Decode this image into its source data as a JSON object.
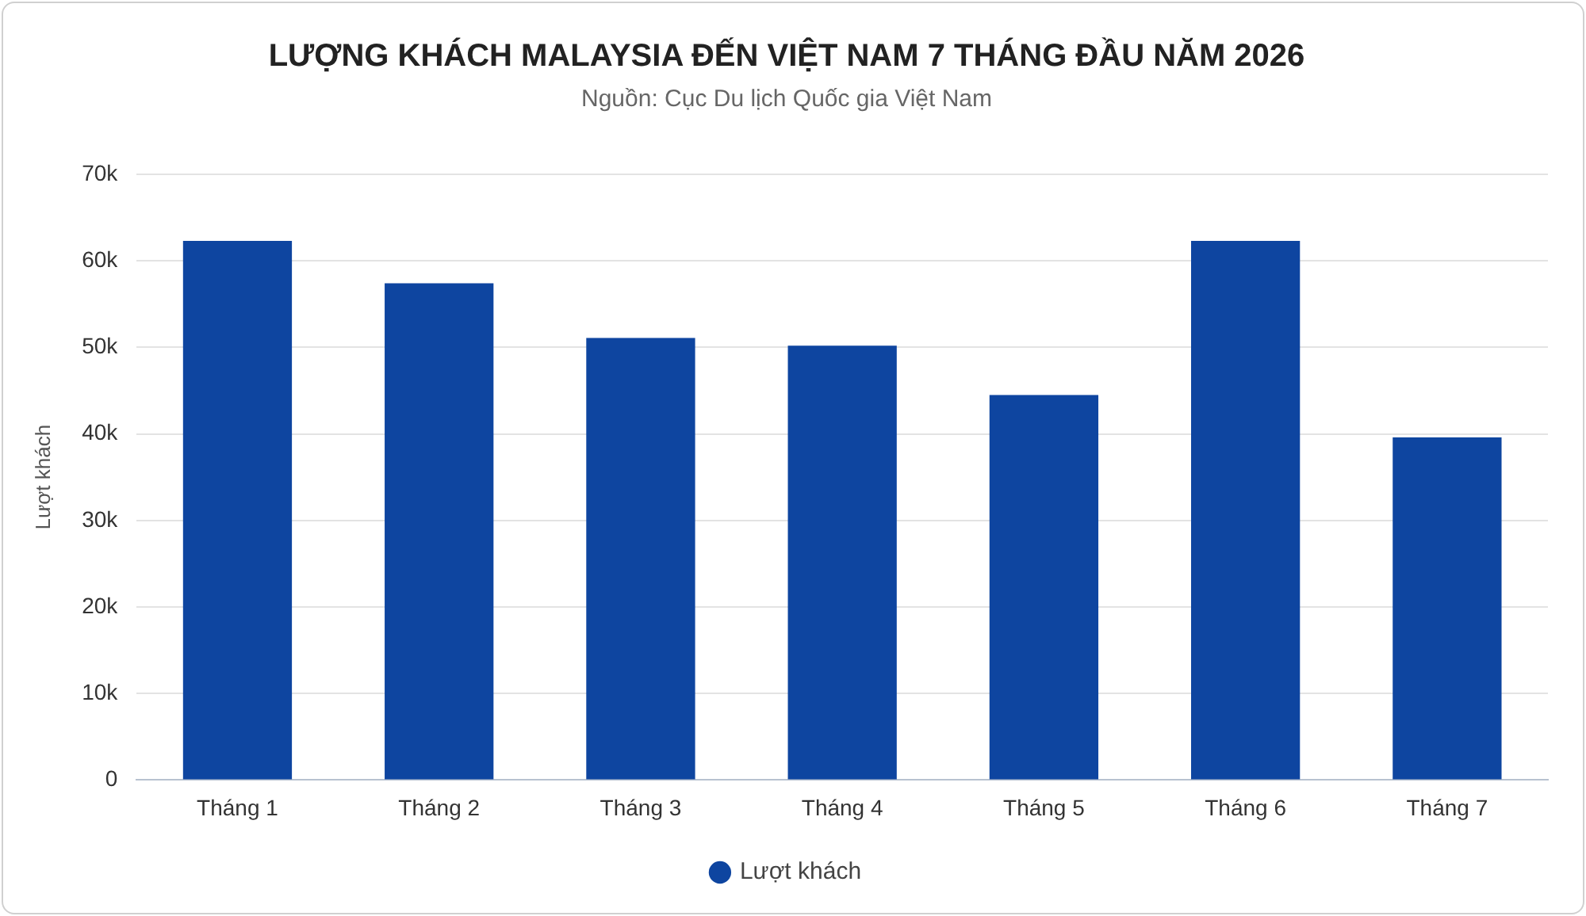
{
  "chart_data": {
    "type": "bar",
    "title": "LƯỢNG KHÁCH MALAYSIA ĐẾN VIỆT NAM 7 THÁNG ĐẦU NĂM 2026",
    "subtitle": "Nguồn: Cục Du lịch Quốc gia Việt Nam",
    "ylabel": "Lượt khách",
    "categories": [
      "Tháng 1",
      "Tháng 2",
      "Tháng 3",
      "Tháng 4",
      "Tháng 5",
      "Tháng 6",
      "Tháng 7"
    ],
    "series": [
      {
        "name": "Lượt khách",
        "color": "#0e45a0",
        "values": [
          62300,
          57400,
          51100,
          50200,
          44500,
          62300,
          39600
        ]
      }
    ],
    "ylim": [
      0,
      70000
    ],
    "yticks": [
      0,
      {
        "value": 10000,
        "label": "10k"
      },
      {
        "value": 20000,
        "label": "20k"
      },
      {
        "value": 30000,
        "label": "30k"
      },
      {
        "value": 40000,
        "label": "40k"
      },
      {
        "value": 50000,
        "label": "50k"
      },
      {
        "value": 60000,
        "label": "60k"
      },
      {
        "value": 70000,
        "label": "70k"
      }
    ],
    "grid": "y",
    "legend": "bottom"
  }
}
